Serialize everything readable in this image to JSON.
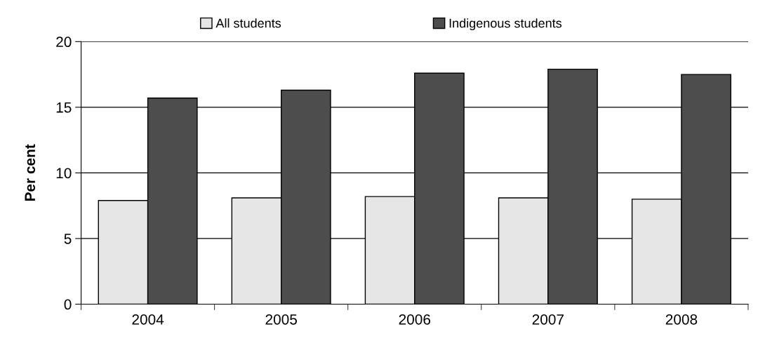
{
  "chart_data": {
    "type": "bar",
    "ylabel": "Per cent",
    "categories": [
      "2004",
      "2005",
      "2006",
      "2007",
      "2008"
    ],
    "series": [
      {
        "name": "All students",
        "color": "#e6e6e6",
        "values": [
          7.9,
          8.1,
          8.2,
          8.1,
          8.0
        ]
      },
      {
        "name": "Indigenous students",
        "color": "#4d4d4d",
        "values": [
          15.7,
          16.3,
          17.6,
          17.9,
          17.5
        ]
      }
    ],
    "ylim": [
      0,
      20
    ],
    "yticks": [
      0,
      5,
      10,
      15,
      20
    ],
    "grid": "y",
    "legend": "top"
  }
}
